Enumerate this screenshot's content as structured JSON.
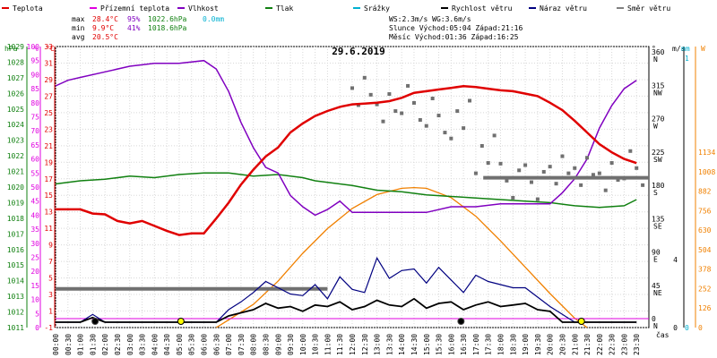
{
  "chart_data": {
    "type": "line",
    "title": "29.6.2019",
    "legend": [
      {
        "key": "teplota",
        "label": "Teplota",
        "color": "#e00000"
      },
      {
        "key": "prizemni",
        "label": "Přízemní teplota",
        "color": "#e000e0"
      },
      {
        "key": "vlhkost",
        "label": "Vlhkost",
        "color": "#8000c0"
      },
      {
        "key": "tlak",
        "label": "Tlak",
        "color": "#108010"
      },
      {
        "key": "srazky",
        "label": "Srážky",
        "color": "#00b0d0"
      },
      {
        "key": "rychlost",
        "label": "Rychlost větru",
        "color": "#000000"
      },
      {
        "key": "naraz",
        "label": "Náraz větru",
        "color": "#000080"
      },
      {
        "key": "smer",
        "label": "Směr větru",
        "color": "#808080"
      }
    ],
    "stats": [
      {
        "label": "max",
        "temp": "28.4°C",
        "hum": "95%",
        "press": "1022.6hPa",
        "rain": "0.0mm"
      },
      {
        "label": "min",
        "temp": " 9.9°C",
        "hum": "41%",
        "press": "1018.6hPa",
        "rain": ""
      },
      {
        "label": "avg",
        "temp": "20.5°C",
        "hum": "",
        "press": "",
        "rain": ""
      }
    ],
    "wind_info": [
      "WS:2.3m/s        WG:3.6m/s",
      "Slunce Východ:05:04  Západ:21:16",
      "Měsíc  Východ:01:36  Západ:16:25"
    ],
    "axes": {
      "hpa": {
        "label": "hPa",
        "min": 1011,
        "max": 1029,
        "ticks": [
          1011,
          1012,
          1013,
          1014,
          1015,
          1016,
          1017,
          1018,
          1019,
          1020,
          1021,
          1022,
          1023,
          1024,
          1025,
          1026,
          1027,
          1028,
          1029
        ]
      },
      "pct": {
        "label": "%",
        "min": 0,
        "max": 100,
        "ticks": [
          0,
          5,
          10,
          15,
          20,
          25,
          30,
          35,
          40,
          45,
          50,
          55,
          60,
          65,
          70,
          75,
          80,
          85,
          90,
          95,
          100
        ]
      },
      "temp": {
        "label": "°C",
        "min": -1,
        "max": 33,
        "ticks": [
          -1,
          1,
          3,
          5,
          7,
          9,
          11,
          13,
          15,
          17,
          19,
          21,
          23,
          25,
          27,
          29,
          31,
          33
        ]
      },
      "dir": {
        "label": "°",
        "ticks": [
          {
            "deg": 0,
            "name": "N"
          },
          {
            "deg": 45,
            "name": "NE"
          },
          {
            "deg": 90,
            "name": "E"
          },
          {
            "deg": 135,
            "name": "SE"
          },
          {
            "deg": 180,
            "name": "S"
          },
          {
            "deg": 225,
            "name": "SW"
          },
          {
            "deg": 270,
            "name": "W"
          },
          {
            "deg": 315,
            "name": "NW"
          },
          {
            "deg": 360,
            "name": "N"
          }
        ]
      },
      "ms": {
        "label": "m/s",
        "min": 0,
        "max": 1,
        "ticks": [
          {
            "v": 0,
            "t": "0"
          },
          {
            "v": 1,
            "t": "1"
          }
        ]
      },
      "mm": {
        "label": "mm",
        "min": 0,
        "max": 1,
        "ticks": [
          {
            "v": 0,
            "t": "0"
          },
          {
            "v": 1,
            "t": "1"
          }
        ]
      },
      "w": {
        "label": "W",
        "ticks": [
          {
            "v": 0,
            "t": "0"
          },
          {
            "v": 126,
            "t": "126"
          },
          {
            "v": 252,
            "t": "252"
          },
          {
            "v": 378,
            "t": "378"
          },
          {
            "v": 504,
            "t": "504"
          },
          {
            "v": 630,
            "t": "630"
          },
          {
            "v": 756,
            "t": "756"
          },
          {
            "v": 882,
            "t": "882"
          },
          {
            "v": 1008,
            "t": "1008"
          },
          {
            "v": 1134,
            "t": "1134"
          }
        ]
      },
      "wind_right": {
        "ticks": [
          {
            "v": 0,
            "t": "0"
          },
          {
            "v": 4,
            "t": "4"
          }
        ]
      },
      "x": {
        "label": "čas",
        "ticks": [
          "00:00",
          "00:30",
          "01:00",
          "01:30",
          "02:00",
          "02:30",
          "03:00",
          "03:30",
          "04:00",
          "04:30",
          "05:00",
          "05:30",
          "06:00",
          "06:30",
          "07:00",
          "07:30",
          "08:00",
          "08:30",
          "09:00",
          "09:30",
          "10:00",
          "10:30",
          "11:00",
          "11:30",
          "12:00",
          "12:30",
          "13:00",
          "13:30",
          "14:00",
          "14:30",
          "15:00",
          "15:30",
          "16:00",
          "16:30",
          "17:00",
          "17:30",
          "18:00",
          "18:30",
          "19:00",
          "19:30",
          "20:00",
          "20:30",
          "21:00",
          "21:30",
          "22:00",
          "22:30",
          "23:00",
          "23:30"
        ]
      }
    },
    "series": [
      {
        "key": "teplota",
        "x": [
          0,
          1,
          1.5,
          2,
          2.5,
          3,
          3.5,
          4,
          4.5,
          5,
          5.5,
          6,
          6.5,
          7,
          7.5,
          8,
          8.5,
          9,
          9.5,
          10,
          10.5,
          11,
          11.5,
          12,
          12.5,
          13,
          13.5,
          14,
          14.5,
          15,
          15.5,
          16,
          16.5,
          17,
          17.5,
          18,
          18.5,
          19,
          19.5,
          20,
          20.5,
          21,
          21.5,
          22,
          22.5,
          23,
          23.5
        ],
        "y": [
          13.3,
          13.3,
          12.8,
          12.7,
          11.9,
          11.6,
          11.9,
          11.3,
          10.7,
          10.2,
          10.4,
          10.4,
          12.2,
          14.1,
          16.3,
          18.1,
          19.7,
          20.8,
          22.6,
          23.7,
          24.6,
          25.2,
          25.7,
          26.0,
          26.1,
          26.2,
          26.4,
          26.8,
          27.4,
          27.6,
          27.8,
          28.0,
          28.2,
          28.1,
          27.9,
          27.7,
          27.6,
          27.3,
          27.0,
          26.2,
          25.3,
          24.0,
          22.6,
          21.2,
          20.2,
          19.4,
          18.9
        ]
      },
      {
        "key": "vlhkost",
        "x": [
          0,
          0.5,
          1,
          2,
          3,
          4,
          5,
          6,
          6.5,
          7,
          7.5,
          8,
          8.5,
          9,
          9.5,
          10,
          10.5,
          11,
          11.5,
          12,
          13,
          14,
          15,
          16,
          17,
          18,
          19,
          20,
          20.5,
          21,
          21.5,
          22,
          22.5,
          23,
          23.5
        ],
        "y": [
          86,
          88,
          89,
          91,
          93,
          94,
          94,
          95,
          92,
          84,
          73,
          64,
          57,
          55,
          47,
          43,
          40,
          42,
          45,
          41,
          41,
          41,
          41,
          43,
          43,
          44,
          44,
          44,
          48,
          53,
          60,
          71,
          79,
          85,
          88
        ]
      },
      {
        "key": "tlak",
        "x": [
          0,
          1,
          2,
          3,
          4,
          5,
          6,
          7,
          8,
          9,
          10,
          10.5,
          11,
          12,
          13,
          14,
          15,
          16,
          17,
          18,
          19,
          20,
          21,
          22,
          23,
          23.5
        ],
        "y": [
          1020.2,
          1020.4,
          1020.5,
          1020.7,
          1020.6,
          1020.8,
          1020.9,
          1020.9,
          1020.7,
          1020.8,
          1020.6,
          1020.4,
          1020.3,
          1020.1,
          1019.8,
          1019.7,
          1019.5,
          1019.4,
          1019.3,
          1019.2,
          1019.1,
          1019.0,
          1018.8,
          1018.7,
          1018.8,
          1019.2
        ]
      },
      {
        "key": "rychlost",
        "x": [
          0,
          0.5,
          1,
          1.5,
          2,
          2.5,
          3,
          3.5,
          4,
          4.5,
          5,
          5.5,
          6,
          6.5,
          7,
          7.5,
          8,
          8.5,
          9,
          9.5,
          10,
          10.5,
          11,
          11.5,
          12,
          12.5,
          13,
          13.5,
          14,
          14.5,
          15,
          15.5,
          16,
          16.5,
          17,
          17.5,
          18,
          18.5,
          19,
          19.5,
          20,
          20.5,
          21,
          21.5,
          22,
          22.5,
          23,
          23.5
        ],
        "y": [
          0,
          0,
          0,
          0.3,
          0,
          0,
          0,
          0,
          0,
          0,
          0,
          0,
          0,
          0,
          0.4,
          0.6,
          0.8,
          1.2,
          0.9,
          1.0,
          0.7,
          1.1,
          1.0,
          1.3,
          0.8,
          1.0,
          1.4,
          1.1,
          1.0,
          1.5,
          0.9,
          1.2,
          1.3,
          0.8,
          1.1,
          1.3,
          1.0,
          1.1,
          1.2,
          0.8,
          0.7,
          0,
          0,
          0,
          0,
          0,
          0,
          0
        ]
      },
      {
        "key": "naraz",
        "x": [
          0,
          0.5,
          1,
          1.5,
          2,
          2.5,
          3,
          3.5,
          4,
          4.5,
          5,
          5.5,
          6,
          6.5,
          7,
          7.5,
          8,
          8.5,
          9,
          9.5,
          10,
          10.5,
          11,
          11.5,
          12,
          12.5,
          13,
          13.5,
          14,
          14.5,
          15,
          15.5,
          16,
          16.5,
          17,
          17.5,
          18,
          18.5,
          19,
          19.5,
          20,
          20.5,
          21,
          21.5,
          22,
          22.5,
          23,
          23.5
        ],
        "y": [
          0,
          0,
          0,
          0.5,
          0,
          0,
          0,
          0,
          0,
          0,
          0,
          0,
          0,
          0,
          0.8,
          1.3,
          1.9,
          2.6,
          2.2,
          1.8,
          1.7,
          2.4,
          1.5,
          2.9,
          2.1,
          1.9,
          4.1,
          2.8,
          3.3,
          3.4,
          2.5,
          3.5,
          2.7,
          1.9,
          3.0,
          2.6,
          2.4,
          2.2,
          2.2,
          1.6,
          1.0,
          0.5,
          0,
          0,
          0,
          0,
          0,
          0
        ]
      },
      {
        "key": "smer",
        "x": [
          0,
          1,
          2,
          3,
          4,
          5,
          6,
          7,
          8,
          9,
          10,
          11,
          12,
          13,
          14,
          15,
          16,
          17,
          18,
          19,
          20,
          21,
          22,
          23
        ],
        "y": [
          null,
          null,
          null,
          null,
          null,
          null,
          null,
          null,
          null,
          null,
          null,
          null,
          310,
          295,
          290,
          280,
          270,
          230,
          190,
          195,
          200,
          205,
          205,
          205
        ]
      },
      {
        "key": "sun",
        "x": [
          6.5,
          8,
          9,
          10,
          11,
          12,
          13,
          14,
          14.5,
          15,
          16,
          17,
          18,
          19,
          20,
          21,
          21.5
        ],
        "y": [
          0,
          150,
          300,
          480,
          640,
          770,
          860,
          900,
          905,
          900,
          840,
          720,
          560,
          390,
          220,
          60,
          0
        ]
      }
    ],
    "wind_dir_early": 45,
    "wind_dir_late": 195,
    "moon_markers": [
      {
        "x": 1.6
      },
      {
        "x": 16.4
      }
    ],
    "sun_markers": [
      {
        "x": 5.07
      },
      {
        "x": 21.27
      }
    ]
  }
}
